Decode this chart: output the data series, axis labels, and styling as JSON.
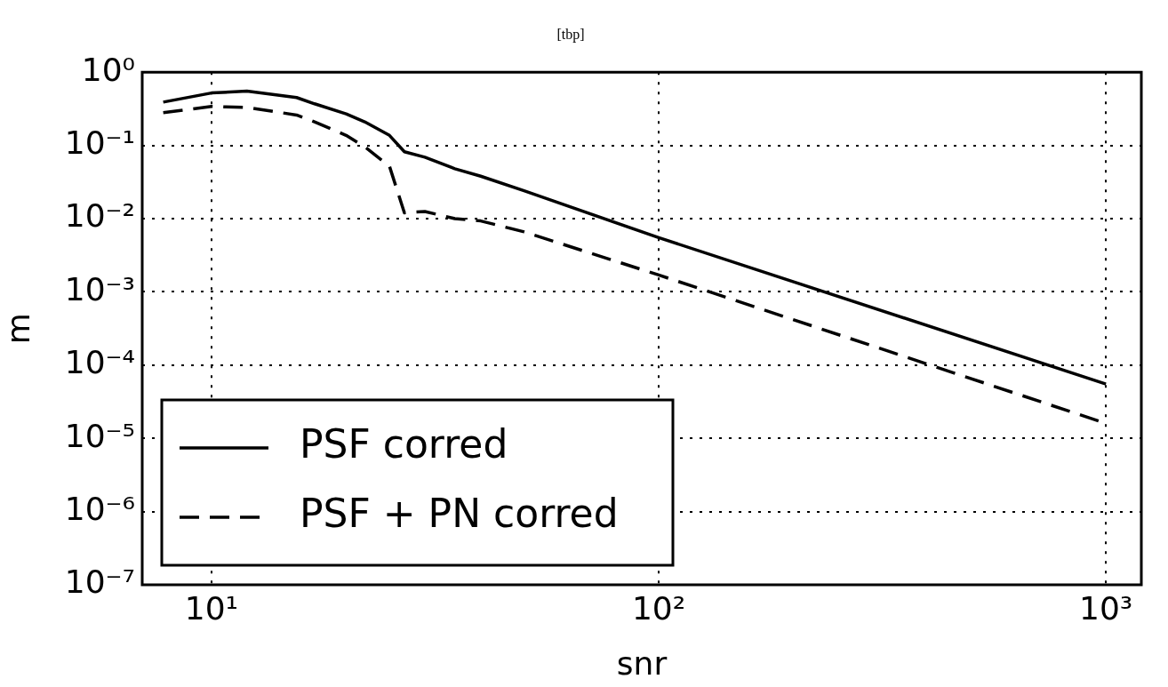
{
  "chart_data": {
    "type": "line",
    "title": "[tbp]",
    "xlabel": "snr",
    "ylabel": "m",
    "log": "xy",
    "grid": true,
    "legend": "bottom left",
    "marker": "none",
    "x": [
      7.8,
      10,
      12,
      15.5,
      17,
      20,
      22,
      25,
      27,
      30,
      35,
      40,
      50,
      100,
      1000
    ],
    "xlim": [
      7,
      1200
    ],
    "ylim": [
      1e-07,
      1
    ],
    "xticks": [
      {
        "value": 10,
        "label": "10¹"
      },
      {
        "value": 100,
        "label": "10²"
      },
      {
        "value": 1000,
        "label": "10³"
      }
    ],
    "yticks": [
      {
        "value": 1,
        "label": "10⁰"
      },
      {
        "value": 0.1,
        "label": "10⁻¹"
      },
      {
        "value": 0.01,
        "label": "10⁻²"
      },
      {
        "value": 0.001,
        "label": "10⁻³"
      },
      {
        "value": 0.0001,
        "label": "10⁻⁴"
      },
      {
        "value": 1e-05,
        "label": "10⁻⁵"
      },
      {
        "value": 1e-06,
        "label": "10⁻⁶"
      },
      {
        "value": 1e-07,
        "label": "10⁻⁷"
      }
    ],
    "series": [
      {
        "name": "PSF corred",
        "color": "#000000",
        "line_style": "solid",
        "values": [
          0.39,
          0.52,
          0.55,
          0.45,
          0.37,
          0.27,
          0.21,
          0.137,
          0.082,
          0.069,
          0.048,
          0.038,
          0.024,
          0.0055,
          5.5e-05
        ]
      },
      {
        "name": "PSF + PN corred",
        "color": "#000000",
        "line_style": "dashed",
        "values": [
          0.28,
          0.34,
          0.33,
          0.26,
          0.21,
          0.137,
          0.096,
          0.052,
          0.012,
          0.0125,
          0.01,
          0.0093,
          0.0066,
          0.0017,
          1.6e-05
        ]
      }
    ]
  }
}
